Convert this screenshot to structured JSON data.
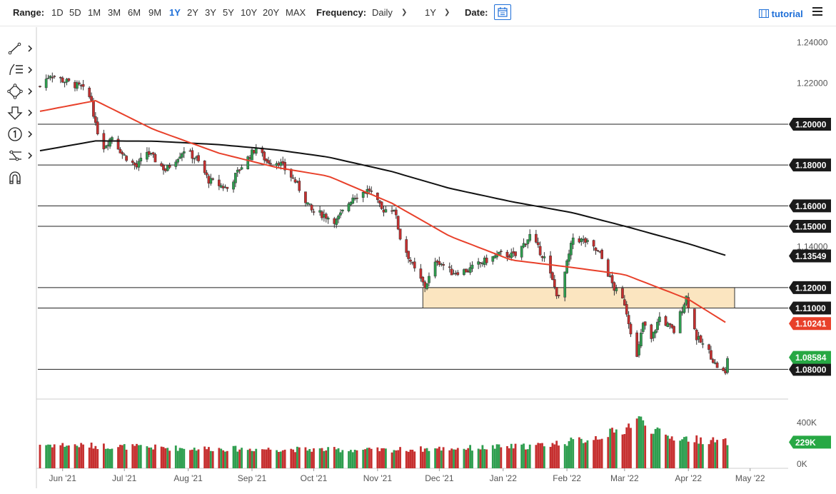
{
  "toolbar": {
    "range_label": "Range:",
    "ranges": [
      "1D",
      "5D",
      "1M",
      "3M",
      "6M",
      "9M",
      "1Y",
      "2Y",
      "3Y",
      "5Y",
      "10Y",
      "20Y",
      "MAX"
    ],
    "active_range": "1Y",
    "frequency_label": "Frequency:",
    "frequency_value": "Daily",
    "period_value": "1Y",
    "date_label": "Date:",
    "tutorial_label": "tutorial"
  },
  "drawing_tools": [
    "line-tool-icon",
    "fibonacci-tool-icon",
    "shapes-tool-icon",
    "arrow-tool-icon",
    "annotation-tool-icon",
    "pattern-tool-icon",
    "magnet-icon"
  ],
  "colors": {
    "up": "#2e9e4f",
    "down": "#c62f2f",
    "ma50": "#e8402a",
    "ma200": "#111111",
    "zone_fill": "#fbe5c0",
    "zone_stroke": "#333333",
    "tag_dark": "#1a1a1a",
    "tag_red": "#e8402a",
    "tag_green": "#27a844",
    "active_range": "#1e6fd8"
  },
  "chart_data": [
    {
      "type": "candlestick",
      "instrument": "",
      "x_tick_labels": [
        "Jun '21",
        "Jul '21",
        "Aug '21",
        "Sep '21",
        "Oct '21",
        "Nov '21",
        "Dec '21",
        "Jan '22",
        "Feb '22",
        "Mar '22",
        "Apr '22",
        "May '22"
      ],
      "y_tick_labels": [
        "1.24000",
        "1.22000",
        "1.14000"
      ],
      "ylim": [
        1.0665,
        1.2475
      ],
      "horizontal_levels": [
        {
          "value": 1.2,
          "label": "1.20000"
        },
        {
          "value": 1.18,
          "label": "1.18000"
        },
        {
          "value": 1.16,
          "label": "1.16000"
        },
        {
          "value": 1.15,
          "label": "1.15000"
        },
        {
          "value": 1.12,
          "label": "1.12000"
        },
        {
          "value": 1.11,
          "label": "1.11000"
        },
        {
          "value": 1.08,
          "label": "1.08000"
        }
      ],
      "price_tags": [
        {
          "value": 1.13549,
          "label": "1.13549",
          "series": "ma200"
        },
        {
          "value": 1.10241,
          "label": "1.10241",
          "series": "ma50"
        },
        {
          "value": 1.08584,
          "label": "1.08584",
          "series": "last"
        }
      ],
      "zone": {
        "from_date": "2021-11-23",
        "to_date": "2022-04-20",
        "low": 1.11,
        "high": 1.12
      },
      "keypoints": [
        {
          "date": "2021-05-21",
          "close": 1.2185
        },
        {
          "date": "2021-05-26",
          "close": 1.2245
        },
        {
          "date": "2021-06-01",
          "close": 1.2215
        },
        {
          "date": "2021-06-10",
          "close": 1.218
        },
        {
          "date": "2021-06-15",
          "close": 1.212
        },
        {
          "date": "2021-06-17",
          "close": 1.199
        },
        {
          "date": "2021-06-21",
          "close": 1.189
        },
        {
          "date": "2021-06-25",
          "close": 1.194
        },
        {
          "date": "2021-06-30",
          "close": 1.1855
        },
        {
          "date": "2021-07-07",
          "close": 1.179
        },
        {
          "date": "2021-07-12",
          "close": 1.1865
        },
        {
          "date": "2021-07-21",
          "close": 1.1775
        },
        {
          "date": "2021-07-30",
          "close": 1.1875
        },
        {
          "date": "2021-08-05",
          "close": 1.183
        },
        {
          "date": "2021-08-11",
          "close": 1.1725
        },
        {
          "date": "2021-08-20",
          "close": 1.1685
        },
        {
          "date": "2021-08-27",
          "close": 1.1795
        },
        {
          "date": "2021-09-03",
          "close": 1.1885
        },
        {
          "date": "2021-09-08",
          "close": 1.182
        },
        {
          "date": "2021-09-14",
          "close": 1.1815
        },
        {
          "date": "2021-09-22",
          "close": 1.172
        },
        {
          "date": "2021-09-30",
          "close": 1.1575
        },
        {
          "date": "2021-10-06",
          "close": 1.1555
        },
        {
          "date": "2021-10-12",
          "close": 1.1525
        },
        {
          "date": "2021-10-20",
          "close": 1.1645
        },
        {
          "date": "2021-10-28",
          "close": 1.168
        },
        {
          "date": "2021-11-03",
          "close": 1.158
        },
        {
          "date": "2021-11-09",
          "close": 1.159
        },
        {
          "date": "2021-11-12",
          "close": 1.1445
        },
        {
          "date": "2021-11-19",
          "close": 1.1285
        },
        {
          "date": "2021-11-24",
          "close": 1.1205
        },
        {
          "date": "2021-11-30",
          "close": 1.1335
        },
        {
          "date": "2021-12-07",
          "close": 1.1275
        },
        {
          "date": "2021-12-15",
          "close": 1.1285
        },
        {
          "date": "2021-12-22",
          "close": 1.1325
        },
        {
          "date": "2021-12-31",
          "close": 1.1365
        },
        {
          "date": "2022-01-07",
          "close": 1.1355
        },
        {
          "date": "2022-01-14",
          "close": 1.1455
        },
        {
          "date": "2022-01-21",
          "close": 1.1345
        },
        {
          "date": "2022-01-28",
          "close": 1.1145
        },
        {
          "date": "2022-02-04",
          "close": 1.1445
        },
        {
          "date": "2022-02-10",
          "close": 1.1425
        },
        {
          "date": "2022-02-17",
          "close": 1.1365
        },
        {
          "date": "2022-02-24",
          "close": 1.1195
        },
        {
          "date": "2022-03-01",
          "close": 1.1125
        },
        {
          "date": "2022-03-07",
          "close": 1.0855
        },
        {
          "date": "2022-03-10",
          "close": 1.1025
        },
        {
          "date": "2022-03-14",
          "close": 1.0945
        },
        {
          "date": "2022-03-18",
          "close": 1.1055
        },
        {
          "date": "2022-03-25",
          "close": 1.0985
        },
        {
          "date": "2022-03-31",
          "close": 1.1155
        },
        {
          "date": "2022-04-05",
          "close": 1.0955
        },
        {
          "date": "2022-04-11",
          "close": 1.0885
        },
        {
          "date": "2022-04-14",
          "close": 1.0825
        },
        {
          "date": "2022-04-19",
          "close": 1.0775
        },
        {
          "date": "2022-04-20",
          "close": 1.0858
        }
      ],
      "ma50_points": [
        {
          "date": "2021-05-21",
          "value": 1.2063
        },
        {
          "date": "2021-06-17",
          "value": 1.2115
        },
        {
          "date": "2021-07-15",
          "value": 1.1975
        },
        {
          "date": "2021-08-16",
          "value": 1.1858
        },
        {
          "date": "2021-09-13",
          "value": 1.1788
        },
        {
          "date": "2021-10-08",
          "value": 1.1746
        },
        {
          "date": "2021-11-08",
          "value": 1.1613
        },
        {
          "date": "2021-12-06",
          "value": 1.1452
        },
        {
          "date": "2022-01-05",
          "value": 1.1335
        },
        {
          "date": "2022-02-04",
          "value": 1.1298
        },
        {
          "date": "2022-03-01",
          "value": 1.1264
        },
        {
          "date": "2022-04-01",
          "value": 1.1143
        },
        {
          "date": "2022-04-20",
          "value": 1.1024
        }
      ],
      "ma200_points": [
        {
          "date": "2021-05-21",
          "value": 1.187
        },
        {
          "date": "2021-06-17",
          "value": 1.1918
        },
        {
          "date": "2021-07-15",
          "value": 1.1917
        },
        {
          "date": "2021-08-16",
          "value": 1.19
        },
        {
          "date": "2021-09-13",
          "value": 1.1874
        },
        {
          "date": "2021-10-08",
          "value": 1.1839
        },
        {
          "date": "2021-11-08",
          "value": 1.1768
        },
        {
          "date": "2021-12-06",
          "value": 1.1686
        },
        {
          "date": "2022-01-05",
          "value": 1.1621
        },
        {
          "date": "2022-02-04",
          "value": 1.1566
        },
        {
          "date": "2022-03-01",
          "value": 1.1501
        },
        {
          "date": "2022-04-01",
          "value": 1.1415
        },
        {
          "date": "2022-04-20",
          "value": 1.1355
        }
      ]
    },
    {
      "type": "bar",
      "name": "volume",
      "y_tick_labels": [
        "400K",
        "0K"
      ],
      "ylim": [
        0,
        400000
      ],
      "last_value_label": "229K",
      "last_value": 229000,
      "keypoints": [
        {
          "date": "2021-05-21",
          "value": 210000
        },
        {
          "date": "2021-08-01",
          "value": 175000
        },
        {
          "date": "2021-11-01",
          "value": 160000
        },
        {
          "date": "2021-12-20",
          "value": 180000
        },
        {
          "date": "2022-01-15",
          "value": 195000
        },
        {
          "date": "2022-02-10",
          "value": 250000
        },
        {
          "date": "2022-03-01",
          "value": 340000
        },
        {
          "date": "2022-03-07",
          "value": 440000
        },
        {
          "date": "2022-03-20",
          "value": 280000
        },
        {
          "date": "2022-04-01",
          "value": 260000
        },
        {
          "date": "2022-04-20",
          "value": 229000
        }
      ]
    }
  ]
}
